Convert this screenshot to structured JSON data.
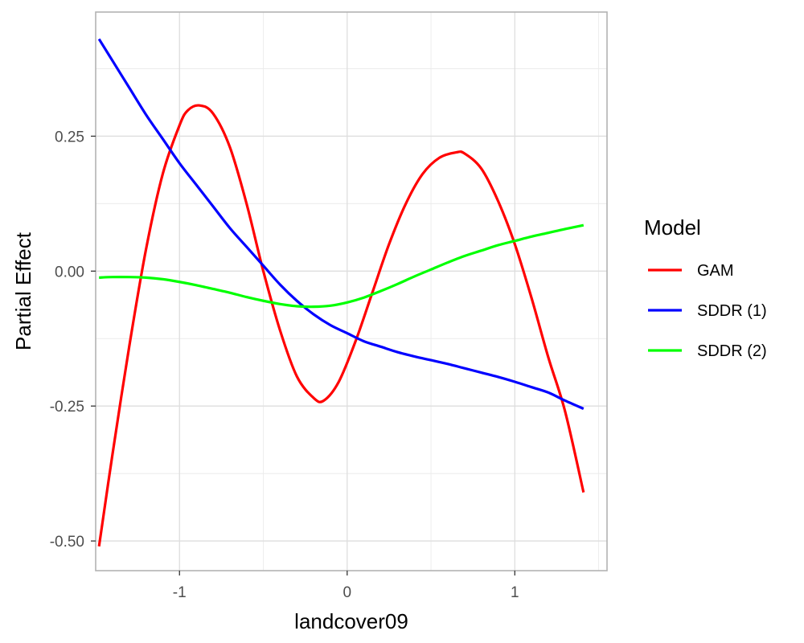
{
  "chart_data": {
    "type": "line",
    "title": "",
    "xlabel": "landcover09",
    "ylabel": "Partial Effect",
    "xlim": [
      -1.5,
      1.55
    ],
    "ylim": [
      -0.555,
      0.48
    ],
    "x_ticks": [
      -1,
      0,
      1
    ],
    "x_tick_labels": [
      "-1",
      "0",
      "1"
    ],
    "y_ticks": [
      -0.5,
      -0.25,
      0,
      0.25
    ],
    "y_tick_labels": [
      "-0.50",
      "-0.25",
      "0.00",
      "0.25"
    ],
    "grid": true,
    "legend": {
      "title": "Model",
      "position": "right"
    },
    "series": [
      {
        "name": "GAM",
        "color": "#ff0000",
        "x": [
          -1.48,
          -1.4,
          -1.3,
          -1.2,
          -1.1,
          -1.0,
          -0.95,
          -0.88,
          -0.8,
          -0.7,
          -0.6,
          -0.5,
          -0.4,
          -0.3,
          -0.2,
          -0.14,
          -0.05,
          0.05,
          0.15,
          0.25,
          0.35,
          0.45,
          0.55,
          0.65,
          0.7,
          0.8,
          0.9,
          1.0,
          1.1,
          1.2,
          1.3,
          1.41
        ],
        "y": [
          -0.51,
          -0.34,
          -0.14,
          0.04,
          0.18,
          0.27,
          0.298,
          0.307,
          0.292,
          0.23,
          0.125,
          0.0,
          -0.11,
          -0.195,
          -0.235,
          -0.24,
          -0.205,
          -0.13,
          -0.04,
          0.05,
          0.125,
          0.18,
          0.21,
          0.22,
          0.218,
          0.19,
          0.13,
          0.05,
          -0.05,
          -0.16,
          -0.26,
          -0.41
        ]
      },
      {
        "name": "SDDR (1)",
        "color": "#0000ff",
        "x": [
          -1.48,
          -1.4,
          -1.3,
          -1.2,
          -1.1,
          -1.0,
          -0.9,
          -0.8,
          -0.7,
          -0.6,
          -0.5,
          -0.4,
          -0.3,
          -0.2,
          -0.1,
          0.0,
          0.1,
          0.2,
          0.3,
          0.4,
          0.5,
          0.6,
          0.7,
          0.8,
          0.9,
          1.0,
          1.1,
          1.2,
          1.3,
          1.41
        ],
        "y": [
          0.43,
          0.39,
          0.34,
          0.29,
          0.245,
          0.2,
          0.16,
          0.12,
          0.08,
          0.045,
          0.01,
          -0.025,
          -0.055,
          -0.08,
          -0.1,
          -0.115,
          -0.13,
          -0.14,
          -0.15,
          -0.158,
          -0.165,
          -0.172,
          -0.18,
          -0.188,
          -0.196,
          -0.205,
          -0.215,
          -0.225,
          -0.24,
          -0.255
        ]
      },
      {
        "name": "SDDR (2)",
        "color": "#00ff00",
        "x": [
          -1.48,
          -1.4,
          -1.3,
          -1.2,
          -1.1,
          -1.0,
          -0.9,
          -0.8,
          -0.7,
          -0.6,
          -0.5,
          -0.4,
          -0.3,
          -0.2,
          -0.1,
          0.0,
          0.1,
          0.2,
          0.3,
          0.4,
          0.5,
          0.6,
          0.7,
          0.8,
          0.9,
          1.0,
          1.1,
          1.2,
          1.3,
          1.41
        ],
        "y": [
          -0.012,
          -0.011,
          -0.011,
          -0.012,
          -0.015,
          -0.02,
          -0.026,
          -0.033,
          -0.04,
          -0.048,
          -0.055,
          -0.061,
          -0.065,
          -0.066,
          -0.064,
          -0.058,
          -0.049,
          -0.037,
          -0.024,
          -0.01,
          0.003,
          0.016,
          0.028,
          0.038,
          0.048,
          0.056,
          0.064,
          0.071,
          0.078,
          0.085
        ]
      }
    ]
  }
}
